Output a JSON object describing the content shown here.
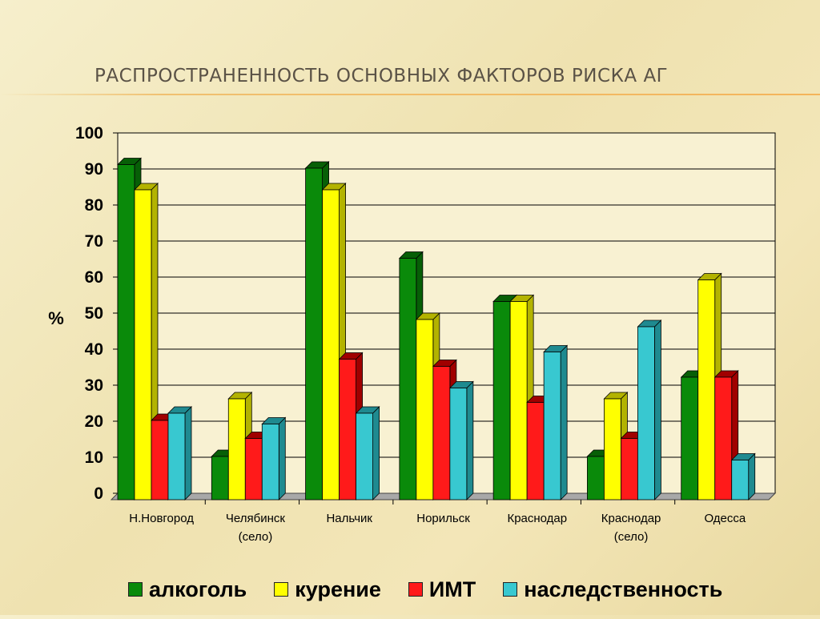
{
  "slide": {
    "title": "РАСПРОСТРАНЕННОСТЬ ОСНОВНЫХ ФАКТОРОВ РИСКА АГ"
  },
  "chart_data": {
    "type": "bar",
    "ylabel": "%",
    "ylim": [
      0,
      100
    ],
    "yticks": [
      0,
      10,
      20,
      30,
      40,
      50,
      60,
      70,
      80,
      90,
      100
    ],
    "grid": true,
    "legend_position": "bottom",
    "categories": [
      [
        "Н.Новгород"
      ],
      [
        "Челябинск",
        "(село)"
      ],
      [
        "Нальчик"
      ],
      [
        "Норильск"
      ],
      [
        "Краснодар"
      ],
      [
        "Краснодар",
        "(село)"
      ],
      [
        "Одесса"
      ]
    ],
    "series": [
      {
        "name": "алкоголь",
        "color": "#0a8a0a",
        "side": "#075f07",
        "values": [
          93,
          12,
          92,
          67,
          55,
          12,
          34
        ]
      },
      {
        "name": "курение",
        "color": "#ffff00",
        "side": "#b3b300",
        "values": [
          86,
          28,
          86,
          50,
          55,
          28,
          61
        ]
      },
      {
        "name": "ИМТ",
        "color": "#ff1a1a",
        "side": "#a00000",
        "values": [
          22,
          17,
          39,
          37,
          27,
          17,
          34
        ]
      },
      {
        "name": "наследственность",
        "color": "#38c8d0",
        "side": "#1f8a90",
        "values": [
          24,
          21,
          24,
          31,
          41,
          48,
          11
        ]
      }
    ]
  }
}
